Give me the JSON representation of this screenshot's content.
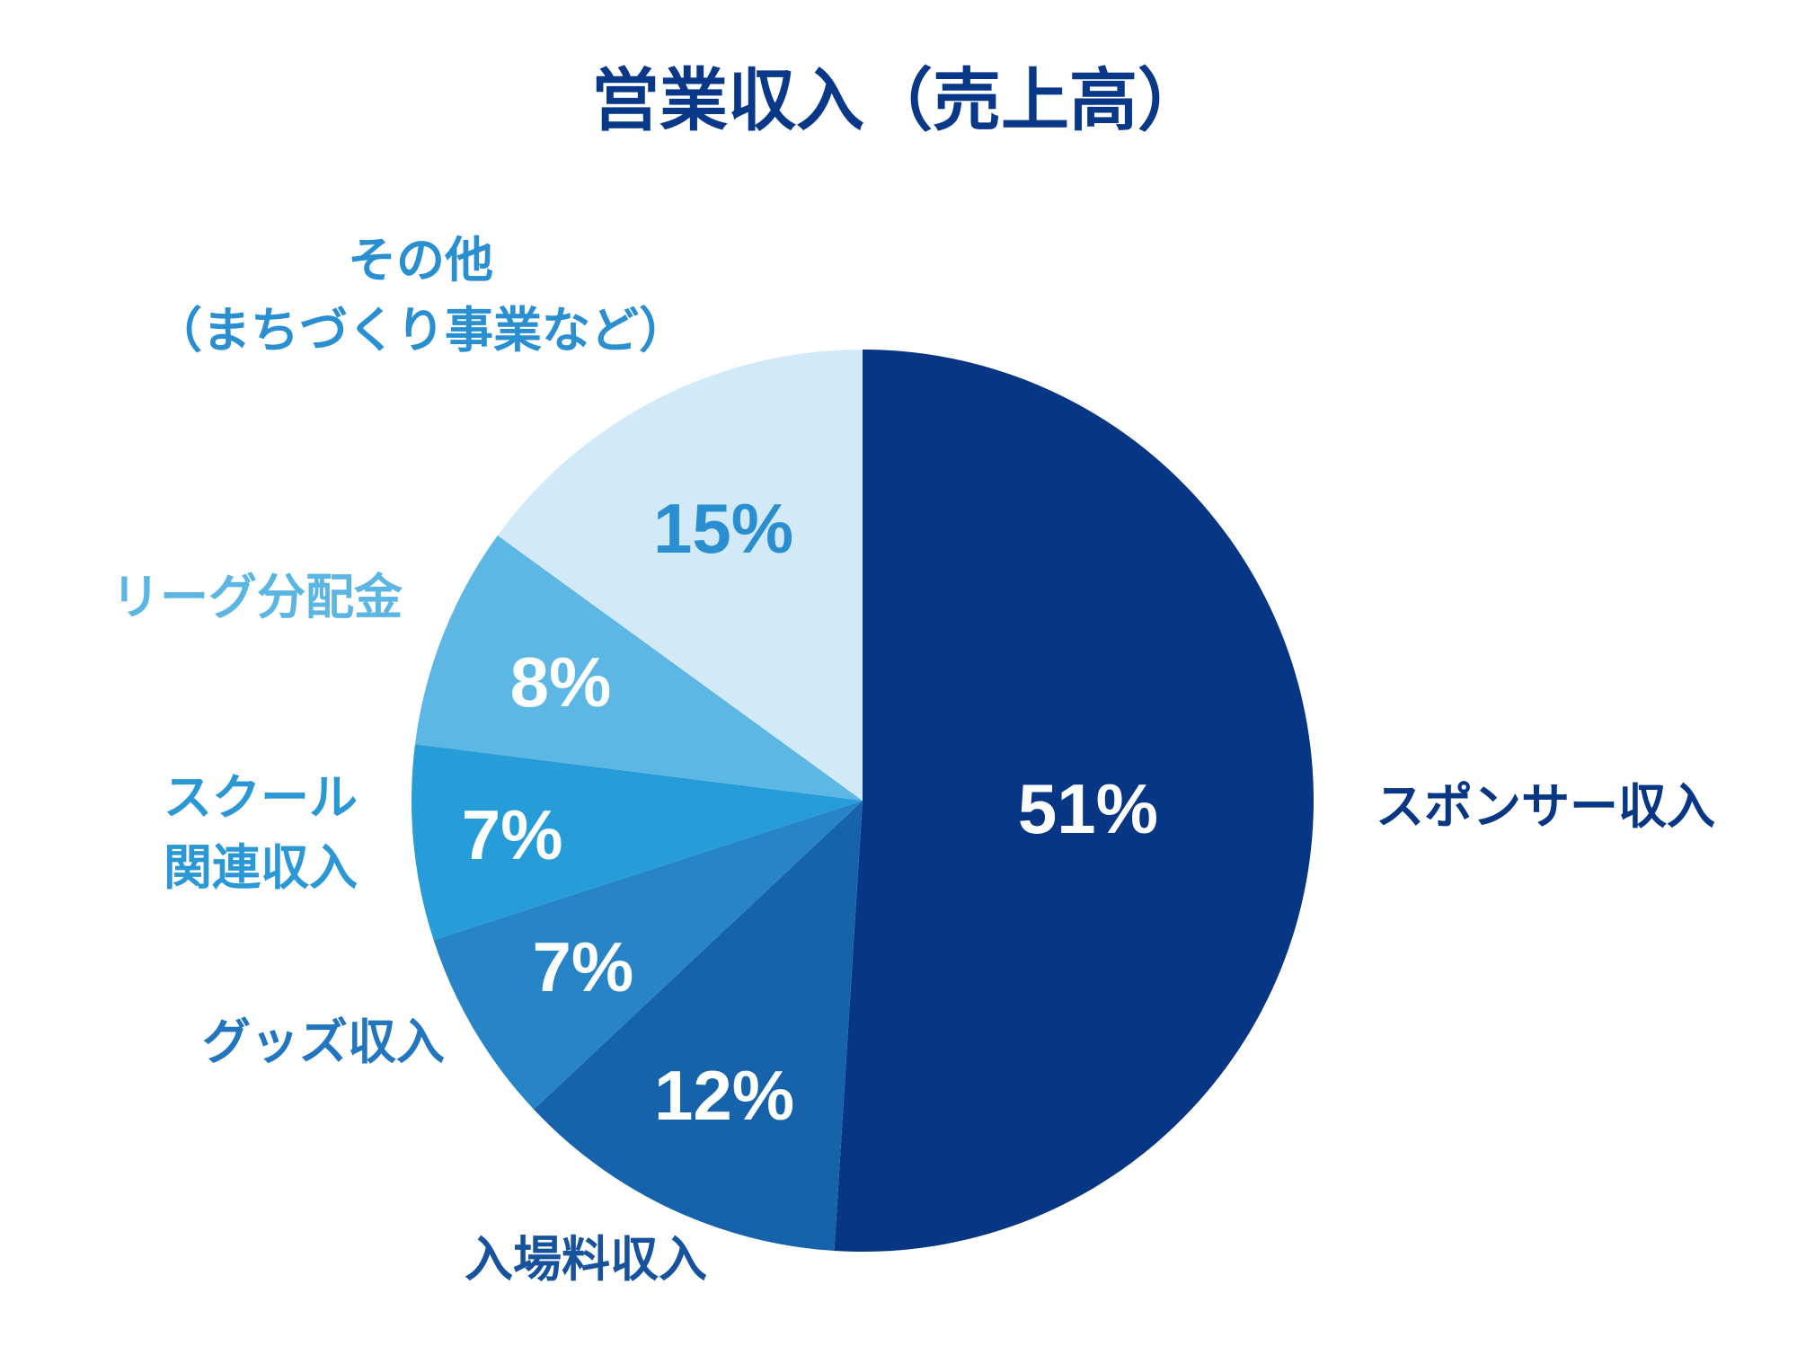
{
  "chart_data": {
    "type": "pie",
    "title": "営業収入（売上高）",
    "start_angle_deg": 0,
    "direction": "clockwise",
    "slices": [
      {
        "label": "スポンサー収入",
        "value_label": "51%",
        "value": 51,
        "color": "#073684",
        "label_color": "#073684",
        "value_text_color": "#ffffff"
      },
      {
        "label": "入場料収入",
        "value_label": "12%",
        "value": 12,
        "color": "#1763ab",
        "label_color": "#17539c",
        "value_text_color": "#ffffff"
      },
      {
        "label": "グッズ収入",
        "value_label": "7%",
        "value": 7,
        "color": "#2684c7",
        "label_color": "#2276bf",
        "value_text_color": "#ffffff"
      },
      {
        "label": "スクール\n関連収入",
        "value_label": "7%",
        "value": 7,
        "color": "#269dd8",
        "label_color": "#2b98d6",
        "value_text_color": "#ffffff"
      },
      {
        "label": "リーグ分配金",
        "value_label": "8%",
        "value": 8,
        "color": "#5db7e4",
        "label_color": "#5cb6e3",
        "value_text_color": "#ffffff"
      },
      {
        "label": "その他\n（まちづくり事業など）",
        "value_label": "15%",
        "value": 15,
        "color": "#d2e9f7",
        "label_color": "#2a8fd0",
        "value_text_color": "#2a8fd0"
      }
    ]
  }
}
